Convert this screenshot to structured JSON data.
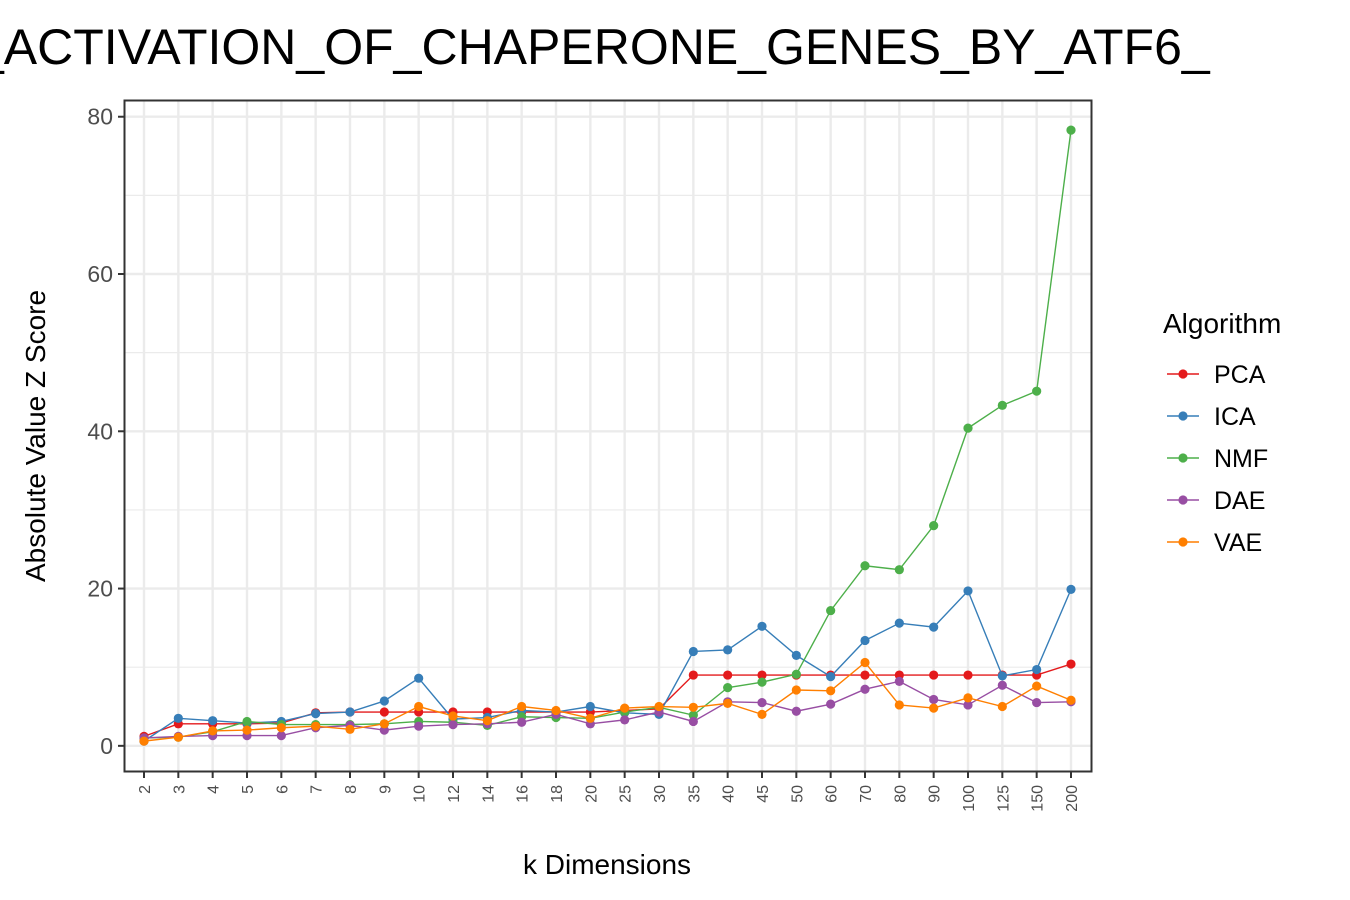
{
  "chart_data": {
    "type": "line",
    "title": "_ACTIVATION_OF_CHAPERONE_GENES_BY_ATF6_",
    "xlabel": "k Dimensions",
    "ylabel": "Absolute Value Z Score",
    "ylim": [
      -3.2,
      82
    ],
    "yticks": [
      0,
      20,
      40,
      60,
      80
    ],
    "grid": true,
    "legend": {
      "title": "Algorithm",
      "position": "right"
    },
    "categories": [
      "2",
      "3",
      "4",
      "5",
      "6",
      "7",
      "8",
      "9",
      "10",
      "12",
      "14",
      "16",
      "18",
      "20",
      "25",
      "30",
      "35",
      "40",
      "45",
      "50",
      "60",
      "70",
      "80",
      "90",
      "100",
      "125",
      "150",
      "200"
    ],
    "series": [
      {
        "name": "PCA",
        "color": "#e41a1c",
        "values": [
          1.2,
          2.8,
          2.8,
          2.8,
          2.9,
          4.2,
          4.3,
          4.3,
          4.3,
          4.3,
          4.3,
          4.3,
          4.3,
          4.3,
          4.5,
          4.7,
          9.0,
          9.0,
          9.0,
          9.0,
          9.0,
          9.0,
          9.0,
          9.0,
          9.0,
          9.0,
          9.0,
          10.4
        ]
      },
      {
        "name": "ICA",
        "color": "#377eb8",
        "values": [
          0.6,
          3.5,
          3.2,
          2.9,
          3.1,
          4.1,
          4.3,
          5.7,
          8.6,
          3.4,
          3.6,
          4.5,
          4.3,
          5.0,
          4.2,
          4.0,
          12.0,
          12.2,
          15.2,
          11.5,
          8.8,
          13.4,
          15.6,
          15.1,
          19.7,
          8.9,
          9.7,
          19.9
        ]
      },
      {
        "name": "NMF",
        "color": "#4daf4a",
        "values": [
          1.0,
          1.1,
          1.8,
          3.1,
          2.7,
          2.7,
          2.7,
          2.8,
          3.1,
          3.0,
          2.6,
          3.7,
          3.6,
          3.5,
          4.3,
          4.9,
          3.9,
          7.4,
          8.1,
          9.1,
          17.2,
          22.9,
          22.4,
          28.0,
          40.4,
          43.3,
          45.1,
          78.3
        ]
      },
      {
        "name": "DAE",
        "color": "#984ea3",
        "values": [
          1.0,
          1.2,
          1.3,
          1.3,
          1.3,
          2.3,
          2.6,
          2.0,
          2.5,
          2.7,
          2.8,
          3.0,
          4.0,
          2.8,
          3.3,
          4.3,
          3.1,
          5.6,
          5.5,
          4.4,
          5.3,
          7.2,
          8.2,
          5.9,
          5.2,
          7.7,
          5.5,
          5.6
        ]
      },
      {
        "name": "VAE",
        "color": "#ff7f00",
        "values": [
          0.6,
          1.1,
          1.9,
          2.0,
          2.3,
          2.5,
          2.1,
          2.8,
          5.0,
          3.8,
          3.2,
          5.0,
          4.5,
          3.5,
          4.8,
          5.0,
          4.9,
          5.4,
          4.0,
          7.1,
          7.0,
          10.6,
          5.2,
          4.8,
          6.1,
          5.0,
          7.6,
          5.8
        ]
      }
    ]
  }
}
